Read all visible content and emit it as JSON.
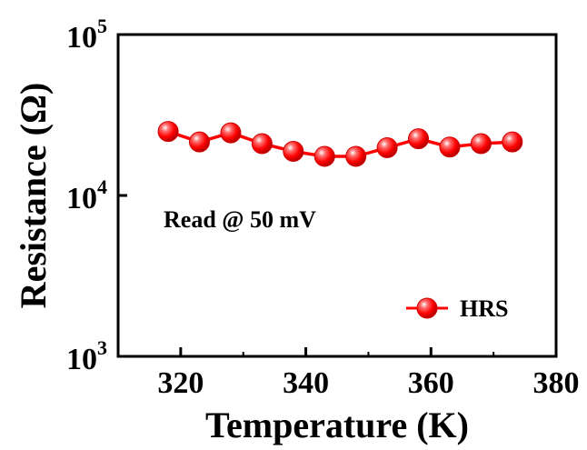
{
  "chart_data": {
    "type": "scatter",
    "xlabel": "Temperature (K)",
    "ylabel": "Resistance (Ω)",
    "xlim": [
      310,
      380
    ],
    "ylim": [
      1000,
      100000
    ],
    "yscale": "log",
    "x_ticks": [
      "320",
      "340",
      "360",
      "380"
    ],
    "x_tick_values": [
      320,
      340,
      360,
      380
    ],
    "y_ticks": [
      {
        "base": "10",
        "exp": "3",
        "value": 1000
      },
      {
        "base": "10",
        "exp": "4",
        "value": 10000
      },
      {
        "base": "10",
        "exp": "5",
        "value": 100000
      }
    ],
    "annotation": "Read @ 50 mV",
    "legend_position": "bottom-right",
    "grid": false,
    "series": [
      {
        "name": "HRS",
        "color": "#ff0000",
        "marker": "circle",
        "line": true,
        "x": [
          318,
          323,
          328,
          333,
          338,
          343,
          348,
          353,
          358,
          363,
          368,
          373
        ],
        "y": [
          25000,
          21500,
          24500,
          21000,
          18800,
          17500,
          17500,
          19800,
          22500,
          20000,
          21000,
          21500
        ]
      }
    ]
  }
}
